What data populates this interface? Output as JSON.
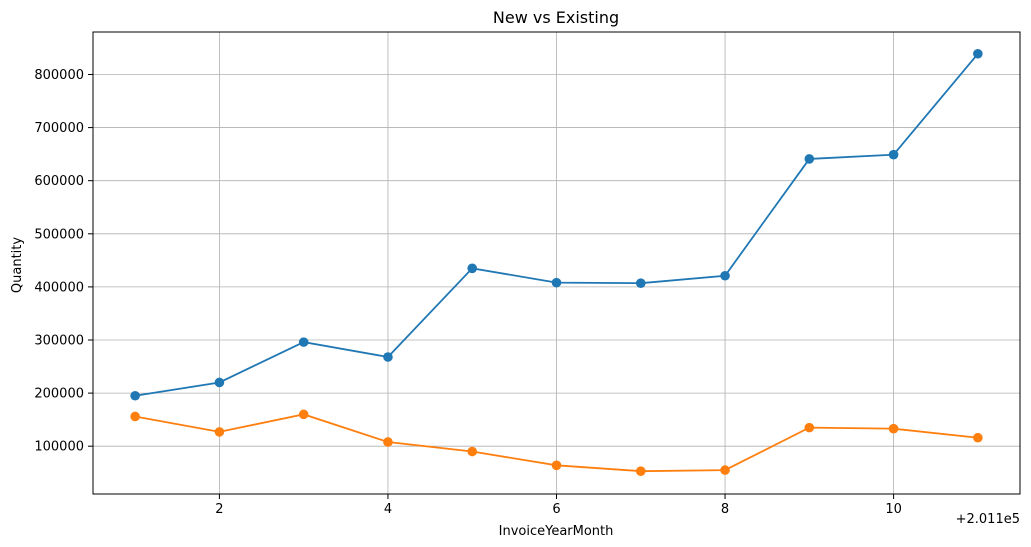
{
  "chart_data": {
    "type": "line",
    "title": "New vs Existing",
    "xlabel": "InvoiceYearMonth",
    "ylabel": "Quantity",
    "x_offset_label": "+2.011e5",
    "x": [
      1,
      2,
      3,
      4,
      5,
      6,
      7,
      8,
      9,
      10,
      11
    ],
    "x_ticks": [
      2,
      4,
      6,
      8,
      10
    ],
    "x_tick_labels": [
      "2",
      "4",
      "6",
      "8",
      "10"
    ],
    "y_ticks": [
      100000,
      200000,
      300000,
      400000,
      500000,
      600000,
      700000,
      800000
    ],
    "y_tick_labels": [
      "100000",
      "200000",
      "300000",
      "400000",
      "500000",
      "600000",
      "700000",
      "800000"
    ],
    "xlim": [
      0.5,
      11.5
    ],
    "ylim": [
      10000,
      880000
    ],
    "grid": true,
    "series": [
      {
        "color": "#1f77b4",
        "marker": "circle",
        "values": [
          195000,
          220000,
          296000,
          268000,
          435000,
          408000,
          407000,
          421000,
          641000,
          649000,
          839000
        ]
      },
      {
        "color": "#ff7f0e",
        "marker": "circle",
        "values": [
          156000,
          127000,
          160000,
          108000,
          90000,
          64000,
          53000,
          55000,
          135000,
          133000,
          116000
        ]
      }
    ]
  }
}
